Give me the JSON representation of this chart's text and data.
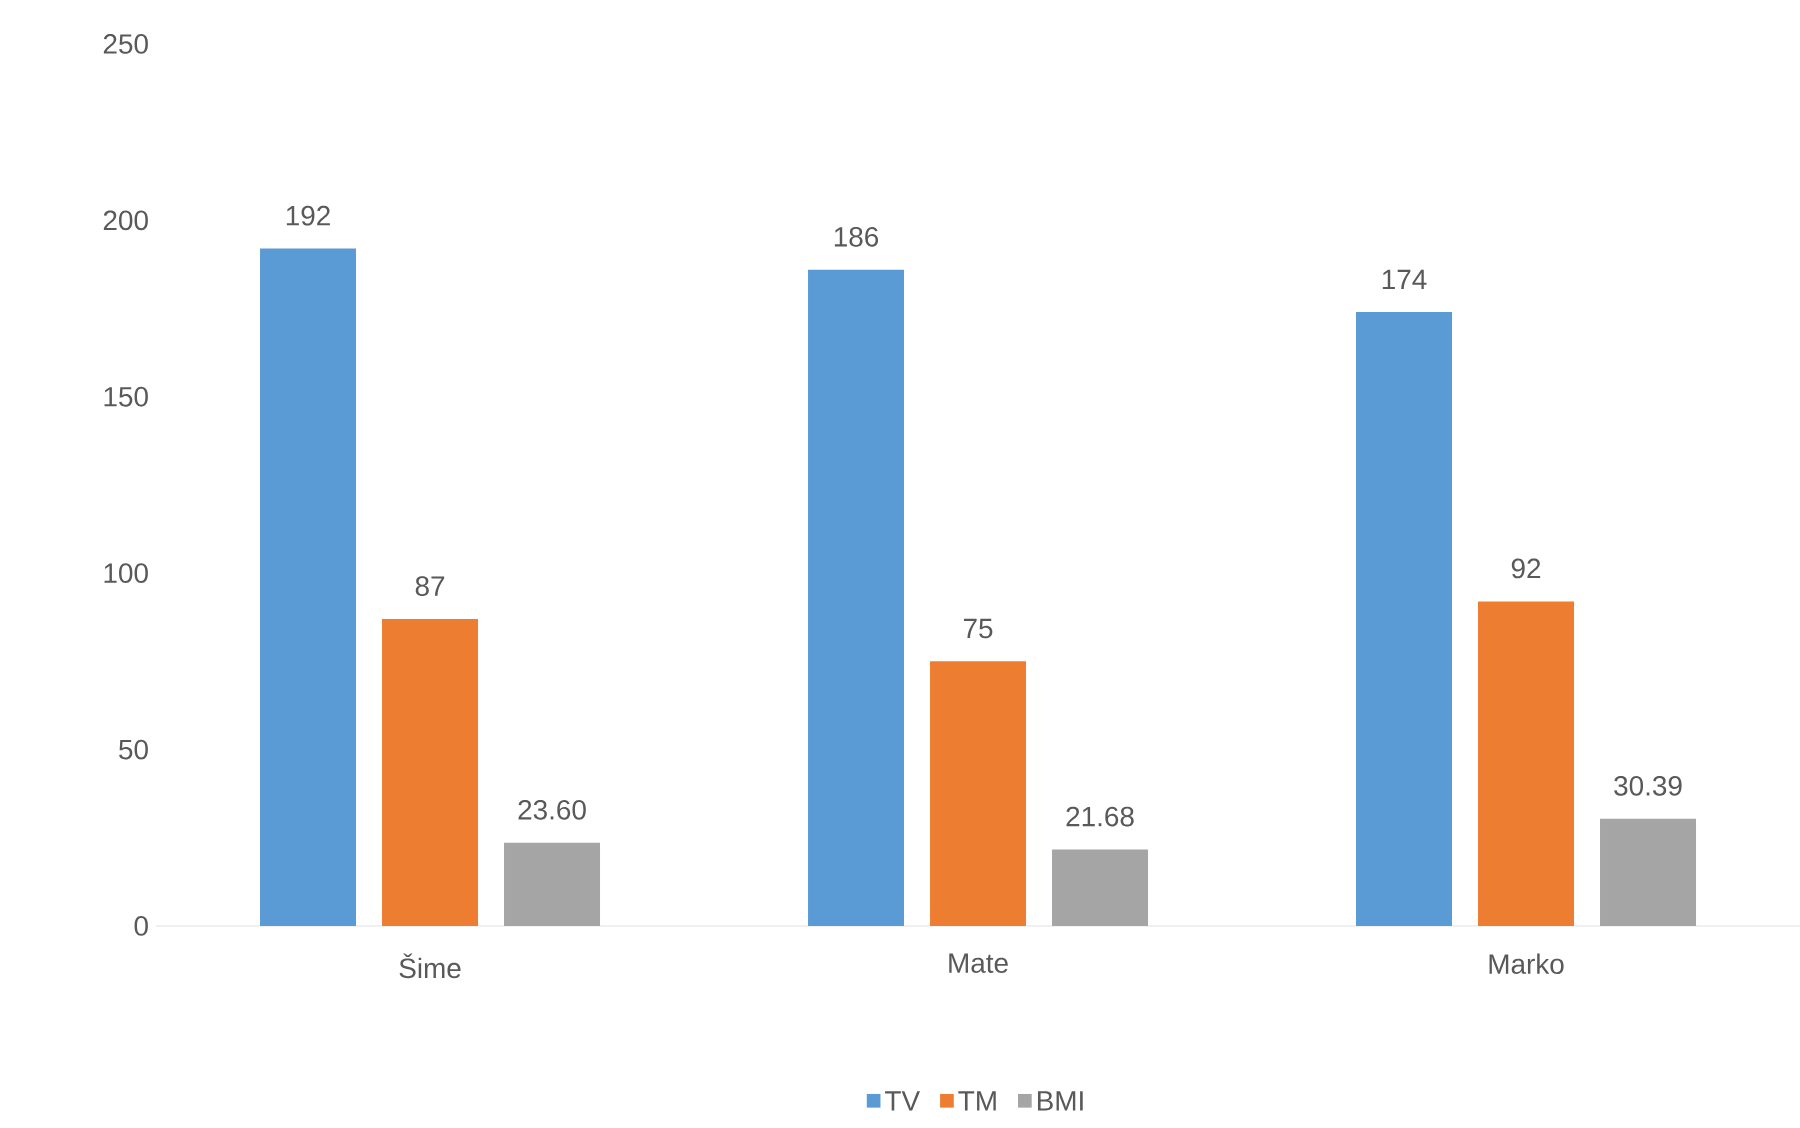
{
  "chart_data": {
    "type": "bar",
    "categories": [
      "Šime",
      "Mate",
      "Marko"
    ],
    "series": [
      {
        "name": "TV",
        "color": "#5b9bd5",
        "values": [
          192,
          186,
          174
        ],
        "value_labels": [
          "192",
          "186",
          "174"
        ]
      },
      {
        "name": "TM",
        "color": "#ed7d31",
        "values": [
          87,
          75,
          92
        ],
        "value_labels": [
          "87",
          "75",
          "92"
        ]
      },
      {
        "name": "BMI",
        "color": "#a5a5a5",
        "values": [
          23.6,
          21.68,
          30.39
        ],
        "value_labels": [
          "23.60",
          "21.68",
          "30.39"
        ]
      }
    ],
    "ylim": [
      0,
      250
    ],
    "yticks": [
      0,
      50,
      100,
      150,
      200,
      250
    ],
    "grid": false,
    "legend": "bottom"
  }
}
